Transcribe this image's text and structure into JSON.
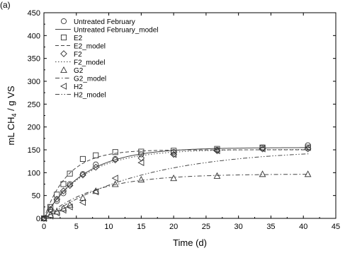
{
  "corner_label": "(a)",
  "chart_data": {
    "type": "scatter",
    "title": "",
    "xlabel": "Time (d)",
    "ylabel_main": "mL CH",
    "ylabel_sub": "4",
    "ylabel_tail": " / g VS",
    "xlim": [
      0,
      45
    ],
    "ylim": [
      0,
      450
    ],
    "xticks": [
      0,
      5,
      10,
      15,
      20,
      25,
      30,
      35,
      40,
      45
    ],
    "yticks": [
      0,
      50,
      100,
      150,
      200,
      250,
      300,
      350,
      400,
      450
    ],
    "grid": false,
    "legend_position": "top-left",
    "series": [
      {
        "name": "Untreated February",
        "marker": "circle",
        "x": [
          0,
          1,
          2,
          3,
          4,
          6,
          8,
          11,
          15,
          20,
          26.7,
          33.7,
          40.7
        ],
        "y": [
          0,
          18,
          38,
          55,
          75,
          97,
          118,
          130,
          140,
          145,
          150,
          155,
          160
        ],
        "model_name": "Untreated February_model",
        "model_style": "solid",
        "model": {
          "A": 155,
          "k": 0.16
        }
      },
      {
        "name": "E2",
        "marker": "square",
        "x": [
          0,
          1,
          2,
          3,
          4,
          6,
          8,
          11,
          15,
          20,
          26.7,
          33.7,
          40.7
        ],
        "y": [
          0,
          25,
          52,
          75,
          98,
          130,
          138,
          145,
          146,
          148,
          152,
          155,
          155
        ],
        "model_name": "E2_model",
        "model_style": "dashed",
        "model": {
          "A": 150,
          "k": 0.27
        }
      },
      {
        "name": "F2",
        "marker": "diamond",
        "x": [
          0,
          1,
          2,
          3,
          4,
          6,
          8,
          11,
          15,
          20,
          26.7,
          33.7,
          40.7
        ],
        "y": [
          0,
          20,
          42,
          60,
          72,
          95,
          112,
          128,
          132,
          140,
          148,
          152,
          152
        ],
        "model_name": "F2_model",
        "model_style": "dotted",
        "model": {
          "A": 151,
          "k": 0.16
        }
      },
      {
        "name": "G2",
        "marker": "triangle-up",
        "x": [
          0,
          1,
          2,
          3,
          4,
          6,
          8,
          11,
          15,
          20,
          26.7,
          33.7,
          40.7
        ],
        "y": [
          0,
          8,
          15,
          22,
          30,
          45,
          60,
          75,
          85,
          88,
          93,
          97,
          97
        ],
        "model_name": "G2_model",
        "model_style": "dashdot",
        "model": {
          "A": 97,
          "k": 0.13
        }
      },
      {
        "name": "H2",
        "marker": "triangle-left",
        "x": [
          0,
          1,
          2,
          3,
          4,
          6,
          8,
          11,
          15,
          20,
          26.7,
          33.7,
          40.7
        ],
        "y": [
          0,
          5,
          12,
          18,
          25,
          35,
          58,
          88,
          122,
          140,
          148,
          152,
          155
        ],
        "model_name": "H2_model",
        "model_style": "dashdotdot",
        "model": {
          "A": 152,
          "k": 0.065
        }
      }
    ]
  }
}
